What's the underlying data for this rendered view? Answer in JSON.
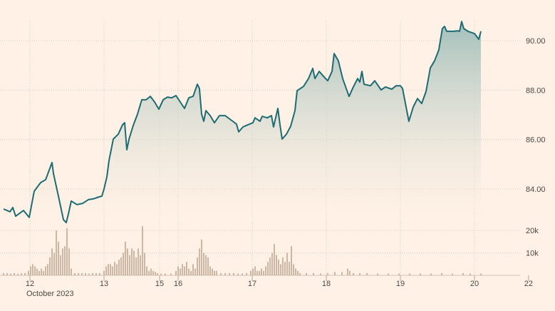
{
  "chart_data": {
    "type": "line",
    "x_sublabel": "October 2023",
    "xlim": [
      -0.404,
      6.76
    ],
    "xticks": [
      {
        "value": 0,
        "label": "12"
      },
      {
        "value": 1,
        "label": "13"
      },
      {
        "value": 1.75,
        "label": "15"
      },
      {
        "value": 2,
        "label": "16"
      },
      {
        "value": 3,
        "label": "17"
      },
      {
        "value": 4,
        "label": "18"
      },
      {
        "value": 5,
        "label": "19"
      },
      {
        "value": 6,
        "label": "20"
      },
      {
        "value": 6.73,
        "label": "22"
      }
    ],
    "ylim": [
      82.7,
      91.1
    ],
    "yticks": [
      {
        "value": 84,
        "label": "84.00"
      },
      {
        "value": 86,
        "label": "86.00"
      },
      {
        "value": 88,
        "label": "88.00"
      },
      {
        "value": 90,
        "label": "90.00"
      }
    ],
    "y2lim": [
      0,
      21000
    ],
    "y2ticks": [
      {
        "value": 10000,
        "label": "10k"
      },
      {
        "value": 20000,
        "label": "20k"
      }
    ],
    "grid": true,
    "series": [
      {
        "color": "#1d6b73",
        "x": [
          -0.356,
          -0.269,
          -0.231,
          -0.192,
          -0.087,
          -0.01,
          0.058,
          0.144,
          0.212,
          0.269,
          0.298,
          0.317,
          0.385,
          0.452,
          0.49,
          0.519,
          0.558,
          0.635,
          0.712,
          0.788,
          0.856,
          0.933,
          0.971,
          1.0,
          1.038,
          1.067,
          1.125,
          1.192,
          1.25,
          1.279,
          1.308,
          1.337,
          1.394,
          1.452,
          1.51,
          1.567,
          1.625,
          1.683,
          1.74,
          1.798,
          1.856,
          1.913,
          1.971,
          2.029,
          2.087,
          2.144,
          2.202,
          2.26,
          2.288,
          2.317,
          2.346,
          2.375,
          2.433,
          2.49,
          2.558,
          2.635,
          2.712,
          2.788,
          2.817,
          2.875,
          2.942,
          3.01,
          3.038,
          3.106,
          3.135,
          3.202,
          3.26,
          3.288,
          3.346,
          3.375,
          3.404,
          3.462,
          3.519,
          3.577,
          3.606,
          3.692,
          3.76,
          3.817,
          3.846,
          3.904,
          3.99,
          4.019,
          4.077,
          4.106,
          4.163,
          4.221,
          4.279,
          4.308,
          4.365,
          4.423,
          4.452,
          4.481,
          4.51,
          4.596,
          4.654,
          4.74,
          4.798,
          4.885,
          4.942,
          5.0,
          5.029,
          5.087,
          5.115,
          5.173,
          5.231,
          5.288,
          5.346,
          5.404,
          5.462,
          5.519,
          5.567,
          5.596,
          5.625,
          5.712,
          5.769,
          5.798,
          5.827,
          5.856,
          5.913,
          6.0,
          6.058,
          6.087
        ],
        "values": [
          83.19,
          83.08,
          83.25,
          82.9,
          83.13,
          82.85,
          83.91,
          84.26,
          84.38,
          84.84,
          85.07,
          84.63,
          83.71,
          82.76,
          82.64,
          82.99,
          83.51,
          83.37,
          83.42,
          83.57,
          83.6,
          83.68,
          83.71,
          84.0,
          84.49,
          85.15,
          86.02,
          86.22,
          86.6,
          86.68,
          85.59,
          86.02,
          86.57,
          87.03,
          87.61,
          87.61,
          87.75,
          87.52,
          87.23,
          87.61,
          87.72,
          87.69,
          87.78,
          87.52,
          87.26,
          87.69,
          87.75,
          88.24,
          88.07,
          87.03,
          86.74,
          87.17,
          86.97,
          86.68,
          86.97,
          86.97,
          86.8,
          86.63,
          86.31,
          86.51,
          86.6,
          86.68,
          86.88,
          86.74,
          86.94,
          86.88,
          86.97,
          86.51,
          87.26,
          86.6,
          86.02,
          86.22,
          86.54,
          87.17,
          87.98,
          88.15,
          88.47,
          88.88,
          88.47,
          88.76,
          88.47,
          88.38,
          88.76,
          89.48,
          89.19,
          88.47,
          87.98,
          87.75,
          88.13,
          88.47,
          88.33,
          88.76,
          88.24,
          88.18,
          88.38,
          88.01,
          88.13,
          88.04,
          88.18,
          88.18,
          88.07,
          87.17,
          86.74,
          87.32,
          87.66,
          87.46,
          87.95,
          88.9,
          89.19,
          89.63,
          90.49,
          90.58,
          90.38,
          90.38,
          90.4,
          90.38,
          90.78,
          90.49,
          90.38,
          90.29,
          90.06,
          90.38
        ]
      },
      {
        "type": "bar",
        "axis": "y2",
        "color": "#cbb6a3",
        "x": [
          -0.356,
          -0.308,
          -0.26,
          -0.212,
          -0.163,
          -0.115,
          -0.067,
          -0.019,
          0.01,
          0.038,
          0.067,
          0.096,
          0.125,
          0.154,
          0.183,
          0.212,
          0.24,
          0.269,
          0.298,
          0.327,
          0.356,
          0.385,
          0.413,
          0.442,
          0.471,
          0.5,
          0.529,
          0.558,
          0.606,
          0.654,
          0.702,
          0.75,
          0.798,
          0.846,
          0.894,
          0.942,
          1.0,
          1.029,
          1.058,
          1.087,
          1.115,
          1.144,
          1.173,
          1.202,
          1.231,
          1.26,
          1.288,
          1.317,
          1.346,
          1.375,
          1.404,
          1.433,
          1.462,
          1.49,
          1.519,
          1.548,
          1.577,
          1.606,
          1.635,
          1.663,
          1.692,
          1.721,
          1.769,
          1.827,
          1.904,
          1.971,
          2.0,
          2.029,
          2.058,
          2.087,
          2.115,
          2.144,
          2.173,
          2.202,
          2.231,
          2.26,
          2.288,
          2.317,
          2.346,
          2.375,
          2.404,
          2.433,
          2.462,
          2.49,
          2.519,
          2.577,
          2.635,
          2.692,
          2.75,
          2.808,
          2.865,
          2.923,
          2.981,
          3.01,
          3.038,
          3.067,
          3.096,
          3.125,
          3.154,
          3.183,
          3.212,
          3.24,
          3.269,
          3.298,
          3.327,
          3.356,
          3.385,
          3.413,
          3.442,
          3.471,
          3.5,
          3.529,
          3.558,
          3.587,
          3.615,
          3.644,
          3.731,
          3.827,
          3.923,
          4.019,
          4.115,
          4.212,
          4.288,
          4.317,
          4.365,
          4.452,
          4.548,
          4.692,
          4.837,
          4.981,
          5.125,
          5.269,
          5.413,
          5.558,
          5.702,
          5.846,
          5.942,
          6.087
        ],
        "values": [
          1000,
          1000,
          800,
          1000,
          700,
          900,
          1000,
          2000,
          4000,
          5000,
          4000,
          3000,
          2000,
          3000,
          2000,
          4000,
          5000,
          8000,
          12000,
          10000,
          20000,
          15000,
          9000,
          12000,
          13000,
          21000,
          12000,
          3000,
          1000,
          1000,
          1000,
          1000,
          800,
          1000,
          1000,
          1000,
          2000,
          4000,
          5000,
          5000,
          4000,
          6000,
          5000,
          7000,
          8000,
          10000,
          15000,
          12000,
          9000,
          12000,
          11000,
          8000,
          12000,
          9000,
          22000,
          10000,
          4000,
          2000,
          3000,
          2000,
          1500,
          1000,
          800,
          800,
          800,
          2000,
          4000,
          3000,
          5000,
          4000,
          6000,
          3000,
          2000,
          5000,
          3000,
          8000,
          12000,
          16000,
          10000,
          9000,
          8000,
          4000,
          3000,
          2000,
          2000,
          1000,
          1000,
          1000,
          1000,
          800,
          800,
          1000,
          2000,
          3000,
          4000,
          2000,
          2000,
          3000,
          2000,
          4000,
          6000,
          8000,
          10000,
          14000,
          9000,
          7000,
          5000,
          8000,
          6000,
          10000,
          6000,
          13000,
          5000,
          3000,
          2000,
          1000,
          1000,
          1000,
          800,
          1000,
          1500,
          1500,
          3000,
          2000,
          1000,
          1000,
          1000,
          800,
          800,
          800,
          800,
          800,
          800,
          1000,
          800,
          1000,
          800,
          800
        ]
      }
    ]
  }
}
